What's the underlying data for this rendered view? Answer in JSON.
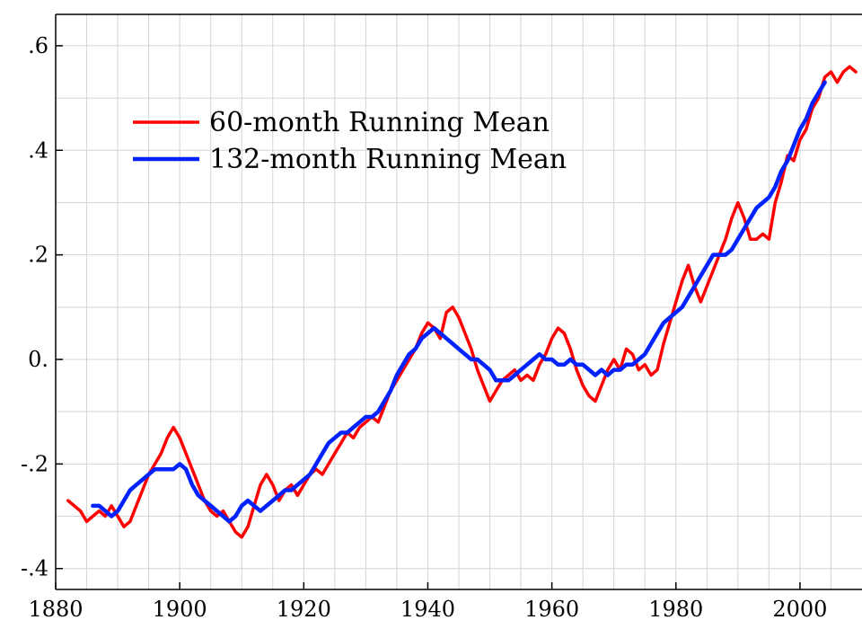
{
  "chart_data": {
    "type": "line",
    "title": "",
    "xlabel": "",
    "ylabel": "",
    "xlim": [
      1880,
      2010
    ],
    "ylim": [
      -0.44,
      0.66
    ],
    "grid": true,
    "legend_position": "top-left",
    "x_ticks": [
      1880,
      1900,
      1920,
      1940,
      1960,
      1980,
      2000
    ],
    "x_tick_labels": [
      "1880",
      "1900",
      "1920",
      "1940",
      "1960",
      "1980",
      "2000"
    ],
    "y_ticks": [
      -0.4,
      -0.2,
      0.0,
      0.2,
      0.4,
      0.6
    ],
    "y_tick_labels": [
      "-.4",
      "-.2",
      "0.",
      ".2",
      ".4",
      ".6"
    ],
    "series": [
      {
        "name": "60-month Running Mean",
        "color": "#ff0000",
        "x": [
          1882,
          1883,
          1884,
          1885,
          1886,
          1887,
          1888,
          1889,
          1890,
          1891,
          1892,
          1893,
          1894,
          1895,
          1896,
          1897,
          1898,
          1899,
          1900,
          1901,
          1902,
          1903,
          1904,
          1905,
          1906,
          1907,
          1908,
          1909,
          1910,
          1911,
          1912,
          1913,
          1914,
          1915,
          1916,
          1917,
          1918,
          1919,
          1920,
          1921,
          1922,
          1923,
          1924,
          1925,
          1926,
          1927,
          1928,
          1929,
          1930,
          1931,
          1932,
          1933,
          1934,
          1935,
          1936,
          1937,
          1938,
          1939,
          1940,
          1941,
          1942,
          1943,
          1944,
          1945,
          1946,
          1947,
          1948,
          1949,
          1950,
          1951,
          1952,
          1953,
          1954,
          1955,
          1956,
          1957,
          1958,
          1959,
          1960,
          1961,
          1962,
          1963,
          1964,
          1965,
          1966,
          1967,
          1968,
          1969,
          1970,
          1971,
          1972,
          1973,
          1974,
          1975,
          1976,
          1977,
          1978,
          1979,
          1980,
          1981,
          1982,
          1983,
          1984,
          1985,
          1986,
          1987,
          1988,
          1989,
          1990,
          1991,
          1992,
          1993,
          1994,
          1995,
          1996,
          1997,
          1998,
          1999,
          2000,
          2001,
          2002,
          2003,
          2004,
          2005,
          2006,
          2007,
          2008,
          2009
        ],
        "values": [
          -0.27,
          -0.28,
          -0.29,
          -0.31,
          -0.3,
          -0.29,
          -0.3,
          -0.28,
          -0.3,
          -0.32,
          -0.31,
          -0.28,
          -0.25,
          -0.22,
          -0.2,
          -0.18,
          -0.15,
          -0.13,
          -0.15,
          -0.18,
          -0.21,
          -0.24,
          -0.27,
          -0.29,
          -0.3,
          -0.29,
          -0.31,
          -0.33,
          -0.34,
          -0.32,
          -0.28,
          -0.24,
          -0.22,
          -0.24,
          -0.27,
          -0.25,
          -0.24,
          -0.26,
          -0.24,
          -0.22,
          -0.21,
          -0.22,
          -0.2,
          -0.18,
          -0.16,
          -0.14,
          -0.15,
          -0.13,
          -0.12,
          -0.11,
          -0.12,
          -0.09,
          -0.06,
          -0.04,
          -0.02,
          0.0,
          0.02,
          0.05,
          0.07,
          0.06,
          0.04,
          0.09,
          0.1,
          0.08,
          0.05,
          0.02,
          -0.02,
          -0.05,
          -0.08,
          -0.06,
          -0.04,
          -0.03,
          -0.02,
          -0.04,
          -0.03,
          -0.04,
          -0.01,
          0.01,
          0.04,
          0.06,
          0.05,
          0.02,
          -0.02,
          -0.05,
          -0.07,
          -0.08,
          -0.05,
          -0.02,
          0.0,
          -0.02,
          0.02,
          0.01,
          -0.02,
          -0.01,
          -0.03,
          -0.02,
          0.03,
          0.07,
          0.11,
          0.15,
          0.18,
          0.14,
          0.11,
          0.14,
          0.17,
          0.2,
          0.23,
          0.27,
          0.3,
          0.27,
          0.23,
          0.23,
          0.24,
          0.23,
          0.3,
          0.34,
          0.39,
          0.38,
          0.42,
          0.44,
          0.48,
          0.5,
          0.54,
          0.55,
          0.53,
          0.55,
          0.56,
          0.55
        ]
      },
      {
        "name": "132-month Running Mean",
        "color": "#0022ff",
        "x": [
          1886,
          1887,
          1888,
          1889,
          1890,
          1891,
          1892,
          1893,
          1894,
          1895,
          1896,
          1897,
          1898,
          1899,
          1900,
          1901,
          1902,
          1903,
          1904,
          1905,
          1906,
          1907,
          1908,
          1909,
          1910,
          1911,
          1912,
          1913,
          1914,
          1915,
          1916,
          1917,
          1918,
          1919,
          1920,
          1921,
          1922,
          1923,
          1924,
          1925,
          1926,
          1927,
          1928,
          1929,
          1930,
          1931,
          1932,
          1933,
          1934,
          1935,
          1936,
          1937,
          1938,
          1939,
          1940,
          1941,
          1942,
          1943,
          1944,
          1945,
          1946,
          1947,
          1948,
          1949,
          1950,
          1951,
          1952,
          1953,
          1954,
          1955,
          1956,
          1957,
          1958,
          1959,
          1960,
          1961,
          1962,
          1963,
          1964,
          1965,
          1966,
          1967,
          1968,
          1969,
          1970,
          1971,
          1972,
          1973,
          1974,
          1975,
          1976,
          1977,
          1978,
          1979,
          1980,
          1981,
          1982,
          1983,
          1984,
          1985,
          1986,
          1987,
          1988,
          1989,
          1990,
          1991,
          1992,
          1993,
          1994,
          1995,
          1996,
          1997,
          1998,
          1999,
          2000,
          2001,
          2002,
          2003,
          2004
        ],
        "values": [
          -0.28,
          -0.28,
          -0.29,
          -0.3,
          -0.29,
          -0.27,
          -0.25,
          -0.24,
          -0.23,
          -0.22,
          -0.21,
          -0.21,
          -0.21,
          -0.21,
          -0.2,
          -0.21,
          -0.24,
          -0.26,
          -0.27,
          -0.28,
          -0.29,
          -0.3,
          -0.31,
          -0.3,
          -0.28,
          -0.27,
          -0.28,
          -0.29,
          -0.28,
          -0.27,
          -0.26,
          -0.25,
          -0.25,
          -0.24,
          -0.23,
          -0.22,
          -0.2,
          -0.18,
          -0.16,
          -0.15,
          -0.14,
          -0.14,
          -0.13,
          -0.12,
          -0.11,
          -0.11,
          -0.1,
          -0.08,
          -0.06,
          -0.03,
          -0.01,
          0.01,
          0.02,
          0.04,
          0.05,
          0.06,
          0.05,
          0.04,
          0.03,
          0.02,
          0.01,
          0.0,
          0.0,
          -0.01,
          -0.02,
          -0.04,
          -0.04,
          -0.04,
          -0.03,
          -0.02,
          -0.01,
          0.0,
          0.01,
          0.0,
          0.0,
          -0.01,
          -0.01,
          0.0,
          -0.01,
          -0.01,
          -0.02,
          -0.03,
          -0.02,
          -0.03,
          -0.02,
          -0.02,
          -0.01,
          -0.01,
          0.0,
          0.01,
          0.03,
          0.05,
          0.07,
          0.08,
          0.09,
          0.1,
          0.12,
          0.14,
          0.16,
          0.18,
          0.2,
          0.2,
          0.2,
          0.21,
          0.23,
          0.25,
          0.27,
          0.29,
          0.3,
          0.31,
          0.33,
          0.36,
          0.38,
          0.41,
          0.44,
          0.46,
          0.49,
          0.51,
          0.53
        ]
      }
    ]
  }
}
